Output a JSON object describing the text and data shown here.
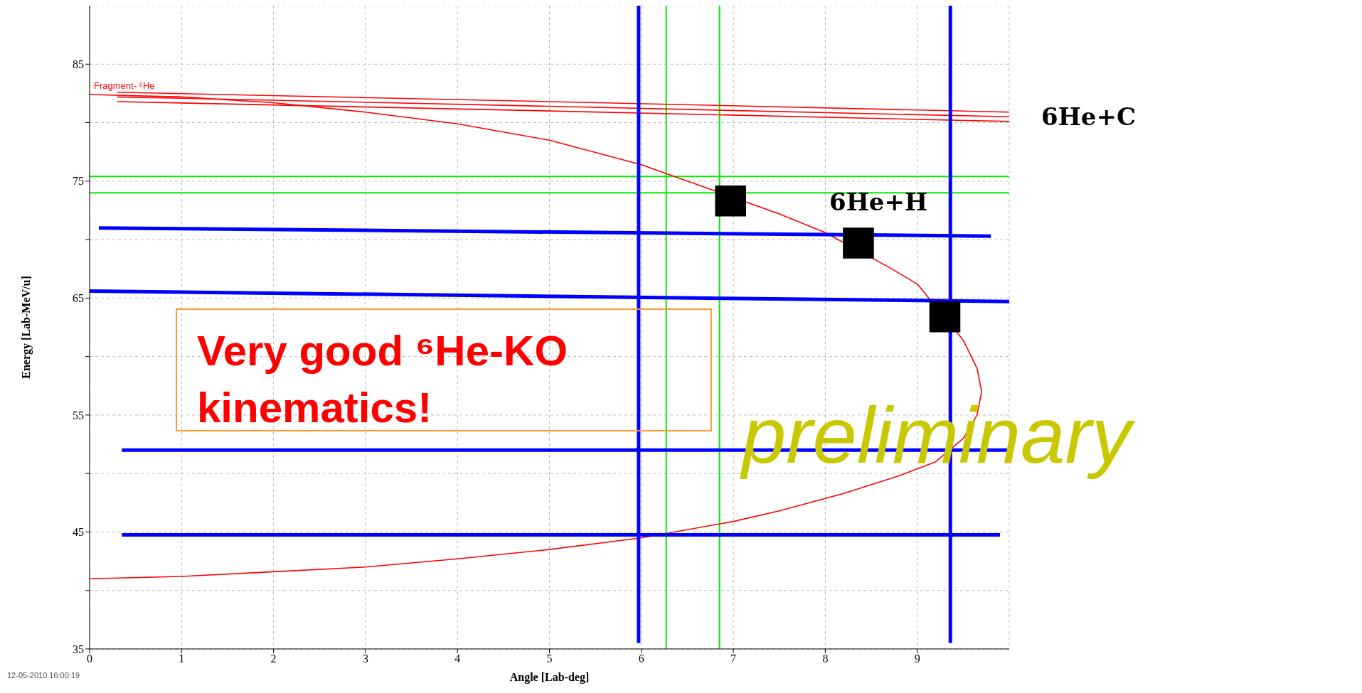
{
  "chart_data": {
    "type": "line",
    "xlabel": "Angle [Lab-deg]",
    "ylabel": "Energy [Lab-MeV/u]",
    "xlim": [
      0,
      10
    ],
    "ylim": [
      35,
      90
    ],
    "xticks": [
      0,
      1,
      2,
      3,
      4,
      5,
      6,
      7,
      8,
      9
    ],
    "yticks": [
      35,
      {
        "value": 40,
        "label": null
      },
      45,
      {
        "value": 50,
        "label": null
      },
      55,
      {
        "value": 60,
        "label": null
      },
      65,
      {
        "value": 70,
        "label": null
      },
      75,
      {
        "value": 80,
        "label": null
      },
      85
    ],
    "grid": true,
    "series": [
      {
        "name": "Fragment- ⁶He",
        "color": "#ff0000",
        "marker": "none",
        "x": [
          0,
          1,
          2,
          3,
          4,
          5,
          6,
          6.5,
          7.5,
          8,
          8.7,
          9,
          9.5,
          9.65,
          9.7,
          9.65,
          9.5,
          9.2,
          8.8,
          8.2,
          7.5,
          7,
          6,
          5,
          4,
          3,
          2,
          1,
          0
        ],
        "values": [
          82.4,
          82.2,
          81.7,
          80.9,
          79.9,
          78.5,
          76.4,
          75,
          72.2,
          70.6,
          67.6,
          66.2,
          61.4,
          59,
          57,
          55,
          53,
          51,
          49.8,
          48.3,
          46.8,
          45.9,
          44.5,
          43.5,
          42.7,
          42,
          41.6,
          41.2,
          41
        ]
      },
      {
        "type": "line",
        "color": "#ff0000",
        "marker": "none",
        "x": [
          0.3,
          5,
          10
        ],
        "values": [
          82.6,
          81.8,
          80.9
        ]
      },
      {
        "type": "line",
        "color": "#ff0000",
        "marker": "none",
        "x": [
          0.3,
          5,
          10
        ],
        "values": [
          82.2,
          81.4,
          80.5
        ]
      },
      {
        "type": "line",
        "color": "#ff0000",
        "marker": "none",
        "x": [
          0.3,
          5,
          10
        ],
        "values": [
          81.8,
          81,
          80.1
        ]
      },
      {
        "type": "line",
        "color": "#0000ff",
        "marker": "none",
        "x": [
          0.1,
          9.8
        ],
        "values": [
          71,
          70.3
        ]
      },
      {
        "type": "line",
        "color": "#0000ff",
        "marker": "none",
        "x": [
          0,
          10
        ],
        "values": [
          65.6,
          64.7
        ]
      },
      {
        "type": "line",
        "color": "#0000ff",
        "marker": "none",
        "x": [
          0.35,
          10
        ],
        "values": [
          52,
          52
        ]
      },
      {
        "type": "line",
        "color": "#0000ff",
        "marker": "none",
        "x": [
          0.35,
          9.9
        ],
        "values": [
          44.75,
          44.75
        ]
      },
      {
        "type": "line",
        "color": "#0000ff",
        "marker": "none",
        "x": [
          5.97,
          5.97
        ],
        "values": [
          35.5,
          90
        ]
      },
      {
        "type": "line",
        "color": "#0000ff",
        "marker": "none",
        "x": [
          9.36,
          9.36
        ],
        "values": [
          35.5,
          90
        ]
      },
      {
        "type": "scatter",
        "color": "#000000",
        "marker": "square",
        "x": [
          6.97,
          8.36,
          9.3
        ],
        "values": [
          73.3,
          69.7,
          63.4
        ]
      }
    ],
    "ref_lines": [
      {
        "axis": "x",
        "value": 6.27,
        "color": "#00ee00"
      },
      {
        "axis": "x",
        "value": 6.85,
        "color": "#00ee00"
      },
      {
        "axis": "y",
        "value": 75.4,
        "color": "#00ee00"
      },
      {
        "axis": "y",
        "value": 74,
        "color": "#00ee00"
      }
    ],
    "annotations": [
      {
        "text": "6He+C",
        "x": 10,
        "y": 80.5
      },
      "6He+H",
      "Very good ⁶He-KO kinematics!",
      "preliminary",
      "12-05-2010  16:00:19"
    ]
  }
}
